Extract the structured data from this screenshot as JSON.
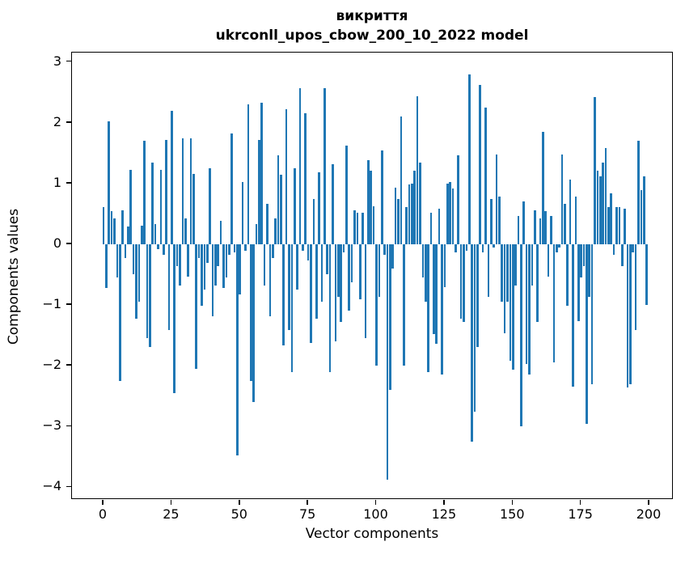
{
  "title": {
    "line1": "викриття",
    "line2": "ukrconll_upos_cbow_200_10_2022 model"
  },
  "chart_data": {
    "type": "bar",
    "title": "викриття — ukrconll_upos_cbow_200_10_2022 model",
    "xlabel": "Vector components",
    "ylabel": "Components values",
    "legend": null,
    "grid": false,
    "bar_color": "#1f77b4",
    "n_components": 200,
    "x_ticks": [
      0,
      25,
      50,
      75,
      100,
      125,
      150,
      175,
      200
    ],
    "y_ticks": [
      3,
      2,
      1,
      0,
      -1,
      -2,
      -3,
      -4
    ],
    "xlim": [
      -11.5,
      208.9
    ],
    "ylim": [
      -4.21,
      3.16
    ],
    "values": [
      0.61,
      -0.72,
      2.02,
      0.55,
      0.43,
      -0.54,
      -2.25,
      0.56,
      -0.22,
      0.29,
      1.23,
      -0.49,
      -1.23,
      -0.95,
      0.3,
      1.71,
      -1.55,
      -1.69,
      1.35,
      0.33,
      -0.08,
      1.23,
      -0.17,
      1.72,
      -1.41,
      2.2,
      -2.45,
      -0.36,
      -0.68,
      1.75,
      0.43,
      -0.53,
      1.74,
      1.16,
      -2.05,
      -0.22,
      -1.01,
      -0.75,
      -0.31,
      1.25,
      -1.18,
      -0.68,
      -0.36,
      0.38,
      -0.72,
      -0.54,
      -0.17,
      1.83,
      -0.13,
      -3.48,
      -0.82,
      1.02,
      -0.1,
      2.3,
      -2.25,
      -2.6,
      0.33,
      1.72,
      2.33,
      -0.68,
      0.66,
      -1.18,
      -0.22,
      0.43,
      1.47,
      1.14,
      -1.66,
      2.23,
      -1.41,
      -2.1,
      1.25,
      -0.75,
      2.57,
      -0.1,
      2.16,
      -0.26,
      -1.63,
      0.74,
      -1.23,
      1.18,
      -0.94,
      2.57,
      -0.49,
      -2.1,
      1.32,
      -1.6,
      -0.86,
      -1.28,
      -0.13,
      1.62,
      -1.09,
      -0.63,
      0.56,
      0.52,
      -0.91,
      0.52,
      -1.55,
      1.39,
      1.21,
      0.62,
      -2.0,
      -0.86,
      1.54,
      -0.17,
      -3.88,
      -2.4,
      -0.4,
      0.93,
      0.75,
      2.1,
      -2.0,
      0.61,
      0.98,
      1.0,
      1.21,
      2.44,
      1.35,
      -0.54,
      -0.95,
      -2.1,
      0.52,
      -1.48,
      -1.64,
      0.59,
      -2.15,
      -0.71,
      1.0,
      1.02,
      0.92,
      -0.13,
      1.47,
      -1.23,
      -1.28,
      -0.1,
      2.8,
      -3.25,
      -2.75,
      -1.69,
      2.62,
      -0.13,
      2.25,
      -0.86,
      0.75,
      -0.05,
      1.48,
      0.79,
      -0.95,
      -1.46,
      -0.95,
      -1.92,
      -2.06,
      -0.68,
      0.47,
      -3.0,
      0.7,
      -1.97,
      -2.15,
      -0.68,
      0.56,
      -1.28,
      0.43,
      1.85,
      0.55,
      -0.53,
      0.47,
      -1.95,
      -0.13,
      -0.05,
      1.48,
      0.67,
      -1.01,
      1.07,
      -2.35,
      0.78,
      -1.27,
      -0.54,
      -0.36,
      -2.95,
      -0.86,
      -2.3,
      2.42,
      1.21,
      1.12,
      1.35,
      1.58,
      0.61,
      0.84,
      -0.17,
      0.61,
      0.61,
      -0.36,
      0.59,
      -2.36,
      -2.3,
      -0.13,
      -1.41,
      1.71,
      0.89,
      1.12,
      -1.0
    ]
  }
}
